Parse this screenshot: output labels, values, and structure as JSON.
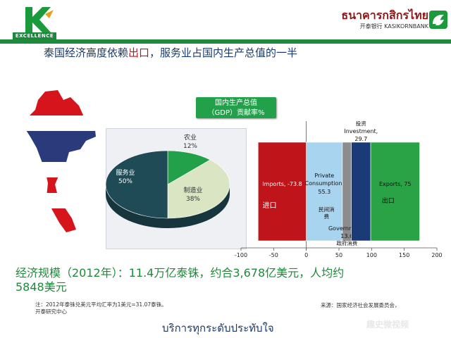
{
  "header": {
    "logo_text": "EXCELLENCE",
    "bank_thai": "ธนาคารกสิกรไทย",
    "bank_eng": "开泰银行 KASIKORNBANK",
    "headline_pre": "泰国经济高度依赖",
    "headline_hl": "出口",
    "headline_post": "，服务业占国内生产总值的一半",
    "accent": "#1e8a3c",
    "highlight": "#c0141b"
  },
  "gdp_box": {
    "line1": "国内生产总值",
    "line2": "（GDP）贡献率%"
  },
  "chart_data": [
    {
      "type": "pie",
      "slices": [
        {
          "name": "农业",
          "value": 12,
          "label": "12%",
          "color": "#22a04a"
        },
        {
          "name": "制造业",
          "value": 38,
          "label": "38%",
          "color": "#d9e5c3"
        },
        {
          "name": "服务业",
          "value": 50,
          "label": "50%",
          "color": "#1f4b57"
        }
      ]
    },
    {
      "type": "bar",
      "orientation": "horizontal-stacked",
      "xlim": [
        -100,
        200
      ],
      "xticks": [
        -100,
        -50,
        0,
        50,
        100,
        150,
        200
      ],
      "segments": [
        {
          "name": "Imports",
          "value": -73.8,
          "label": "Imports, -73.8",
          "cn": "进口",
          "color": "#c0141b"
        },
        {
          "name": "Private Consumption",
          "value": 55.3,
          "label": "Private Consumption, 55.3",
          "cn": "民间消费",
          "color": "#a8d4ef"
        },
        {
          "name": "Government",
          "value": 13.6,
          "label": "Government, 13.6",
          "cn": "政府消费",
          "color": "#8c8c8c"
        },
        {
          "name": "Investment",
          "value": 29.7,
          "label": "Investment, 29.7",
          "cn": "投资",
          "color": "#1a3a78"
        },
        {
          "name": "Exports",
          "value": 75,
          "label": "Exports, 75",
          "cn": "出口",
          "color": "#2aa346"
        }
      ]
    }
  ],
  "scale_line1": "经济规模（2012年）：11.4万亿泰铢，约合3,678亿美元，人均约",
  "scale_line2": "5848美元",
  "note_line1": "注：2012年泰铢兑美元平均汇率为1美元=31.07泰铢。",
  "note_line2": "开泰研究中心",
  "source": "来源：国家经济社会发展委员会，",
  "footer_thai": "บริการทุกระดับประทับใจ",
  "watermark": "趣史微视频"
}
